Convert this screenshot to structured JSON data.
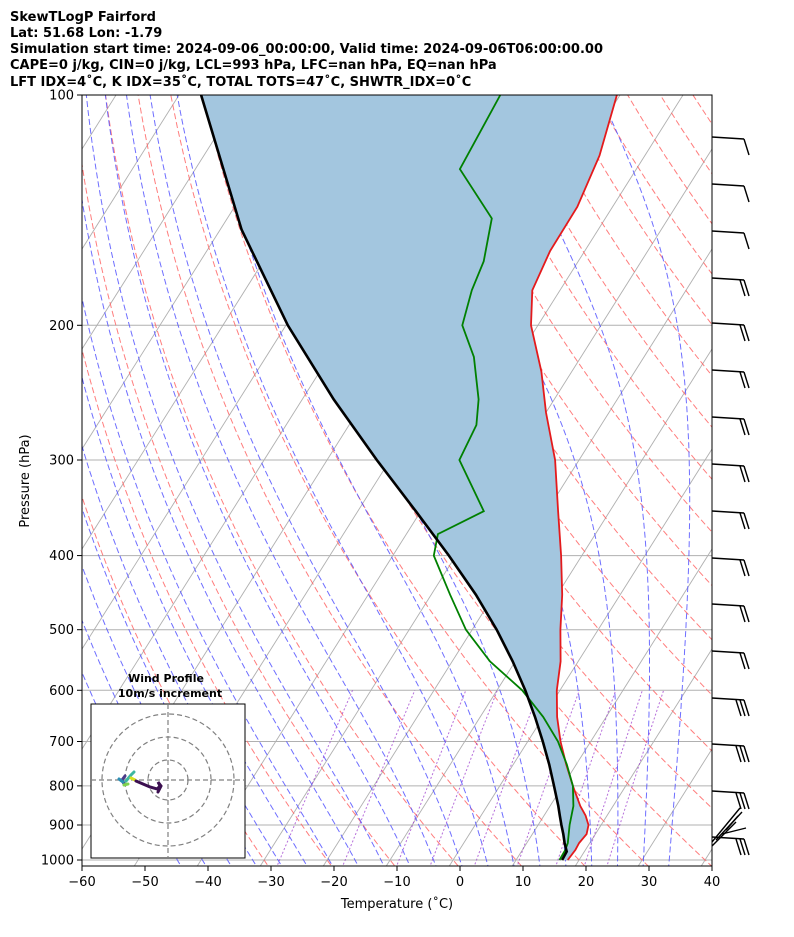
{
  "header": {
    "line1": "SkewTLogP Fairford",
    "line2": "Lat: 51.68   Lon: -1.79",
    "line3": "Simulation start time: 2024-09-06_00:00:00, Valid time: 2024-09-06T06:00:00.00",
    "line4": "CAPE=0 j/kg, CIN=0 j/kg, LCL=993 hPa, LFC=nan hPa, EQ=nan hPa",
    "line5": "LFT IDX=4˚C, K IDX=35˚C, TOTAL TOTS=47˚C, SHWTR_IDX=0˚C"
  },
  "colors": {
    "temperature": "#e41a1c",
    "dewpoint": "#008000",
    "parcel": "#000000",
    "shading": "#a3c6df",
    "dry_adiabat": "#ff6666",
    "moist_adiabat": "#5555ff",
    "mixing_ratio": "#9933cc",
    "isotherm": "#b0b0b0"
  },
  "chart_data": {
    "type": "line",
    "xlabel": "Temperature (˚C)",
    "ylabel": "Pressure (hPa)",
    "xlim": [
      -60,
      40
    ],
    "ylim": [
      1050,
      100
    ],
    "y_scale": "log",
    "grid": true,
    "x_ticks": [
      "−60",
      "−50",
      "−40",
      "−30",
      "−20",
      "−10",
      "0",
      "10",
      "20",
      "30",
      "40"
    ],
    "y_ticks": [
      "100",
      "200",
      "300",
      "400",
      "500",
      "600",
      "700",
      "800",
      "900",
      "1000"
    ],
    "series": [
      {
        "key": "temperature",
        "pressure": [
          1000,
          970,
          950,
          925,
          900,
          875,
          850,
          800,
          750,
          700,
          650,
          600,
          550,
          500,
          450,
          400,
          350,
          300,
          260,
          230,
          200,
          180,
          160,
          140,
          120,
          100
        ],
        "temp": [
          18.2,
          18.4,
          18.3,
          18.6,
          18.0,
          16.6,
          14.8,
          11.6,
          8.4,
          5.2,
          2.2,
          -0.5,
          -2.8,
          -6.0,
          -9.2,
          -13.3,
          -18.2,
          -23.8,
          -30.0,
          -34.8,
          -41.1,
          -44.4,
          -45.5,
          -45.6,
          -47.2,
          -50.5
        ]
      },
      {
        "key": "dewpoint",
        "pressure": [
          1000,
          970,
          950,
          900,
          850,
          800,
          750,
          700,
          650,
          600,
          550,
          500,
          450,
          400,
          375,
          350,
          300,
          270,
          250,
          220,
          200,
          180,
          165,
          145,
          125,
          100
        ],
        "temp": [
          16.9,
          16.8,
          16.5,
          15.0,
          13.7,
          11.6,
          8.5,
          4.8,
          0.0,
          -6.0,
          -14.0,
          -21.0,
          -27.0,
          -33.5,
          -35.0,
          -30.0,
          -39.0,
          -39.8,
          -42.0,
          -47.0,
          -52.0,
          -54.0,
          -55.0,
          -58.0,
          -68.0,
          -69.0
        ]
      },
      {
        "key": "parcel",
        "pressure": [
          1000,
          975,
          950,
          925,
          900,
          875,
          850,
          800,
          750,
          700,
          650,
          600,
          550,
          500,
          450,
          400,
          350,
          300,
          250,
          200,
          150,
          100
        ],
        "temp": [
          17.3,
          17.2,
          16.0,
          14.9,
          13.7,
          12.5,
          11.3,
          8.6,
          5.7,
          2.4,
          -1.3,
          -5.5,
          -10.4,
          -16.1,
          -22.9,
          -31.1,
          -40.8,
          -52.1,
          -65.0,
          -79.7,
          -96.6,
          -116.5
        ]
      }
    ],
    "wind_profile_inset": {
      "title": "Wind Profile",
      "subtitle": "10m/s increment"
    }
  }
}
